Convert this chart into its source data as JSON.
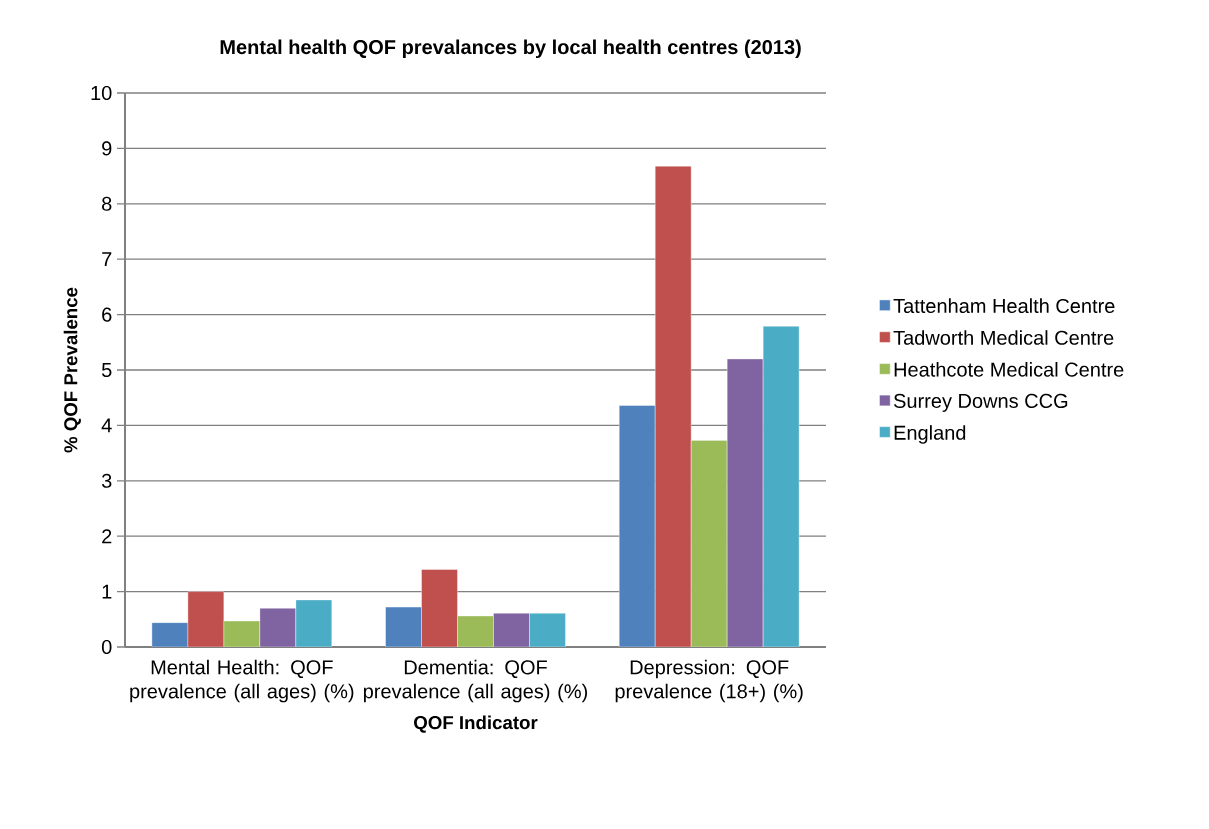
{
  "chart_data": {
    "type": "bar",
    "title": "Mental health QOF prevalances by local health centres (2013)",
    "xlabel": "QOF Indicator",
    "ylabel": "% QOF Prevalence",
    "categories": [
      "Mental Health: QOF prevalence (all ages) (%)",
      "Dementia: QOF prevalence (all ages) (%)",
      "Depression: QOF prevalence (18+) (%)"
    ],
    "series": [
      {
        "name": "Tattenham Health Centre",
        "color": "#4f81bd",
        "values": [
          0.44,
          0.72,
          4.36
        ]
      },
      {
        "name": "Tadworth Medical Centre",
        "color": "#c0504d",
        "values": [
          1.0,
          1.4,
          8.68
        ]
      },
      {
        "name": "Heathcote Medical Centre",
        "color": "#9bbb59",
        "values": [
          0.47,
          0.56,
          3.73
        ]
      },
      {
        "name": "Surrey Downs CCG",
        "color": "#8064a2",
        "values": [
          0.7,
          0.61,
          5.2
        ]
      },
      {
        "name": "England",
        "color": "#4bacc6",
        "values": [
          0.85,
          0.61,
          5.79
        ]
      }
    ],
    "ylim": [
      0,
      10
    ],
    "yticks": [
      0,
      1,
      2,
      3,
      4,
      5,
      6,
      7,
      8,
      9,
      10
    ],
    "grid": "y",
    "legend": "right"
  }
}
